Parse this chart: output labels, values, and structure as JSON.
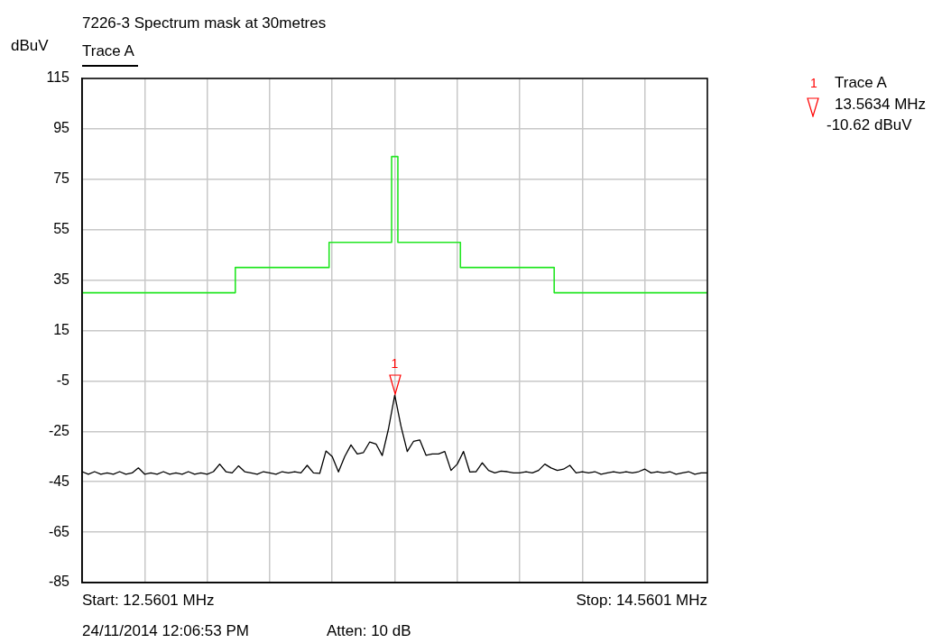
{
  "chart_data": {
    "type": "line",
    "title": "7226-3 Spectrum mask at 30metres",
    "ylabel": "dBuV",
    "categories": [
      null,
      null,
      null,
      null,
      null,
      null,
      null,
      null,
      null,
      null,
      null,
      null,
      null,
      null,
      null,
      null,
      null,
      null,
      null,
      null,
      null,
      null,
      null,
      null,
      null,
      null,
      null,
      null,
      null,
      null,
      null,
      null,
      null,
      null,
      null,
      null,
      null,
      null,
      null,
      null,
      null,
      null,
      null,
      null,
      null,
      null,
      null,
      null,
      null,
      null,
      null,
      null,
      null,
      null,
      null,
      null,
      null,
      null,
      null,
      null,
      null,
      null,
      null,
      null,
      null,
      null,
      null,
      null,
      null,
      null,
      null,
      null,
      null,
      null,
      null,
      null,
      null,
      null,
      null,
      null,
      null,
      null,
      null,
      null,
      null,
      null,
      null,
      null,
      null,
      null,
      null,
      null,
      null,
      null,
      null,
      null,
      null,
      null,
      null,
      null,
      null
    ],
    "ylim": [
      -85,
      115
    ],
    "yticks": [
      115,
      95,
      75,
      55,
      35,
      15,
      -5,
      -25,
      -45,
      -65,
      -85
    ],
    "tick_labels": "y",
    "grid": true,
    "legend": "top left",
    "marker": "none",
    "line_style": "solid",
    "series": [
      {
        "type": "step",
        "color": "#22e622",
        "values": [
          30,
          30,
          30,
          30,
          30,
          30,
          30,
          30,
          30,
          30,
          30,
          30,
          30,
          30,
          30,
          30,
          30,
          30,
          30,
          30,
          30,
          30,
          30,
          30,
          30,
          40,
          40,
          40,
          40,
          40,
          40,
          40,
          40,
          40,
          40,
          40,
          40,
          40,
          40,
          40,
          50,
          50,
          50,
          50,
          50,
          50,
          50,
          50,
          50,
          50,
          84,
          50,
          50,
          50,
          50,
          50,
          50,
          50,
          50,
          50,
          50,
          40,
          40,
          40,
          40,
          40,
          40,
          40,
          40,
          40,
          40,
          40,
          40,
          40,
          40,
          40,
          30,
          30,
          30,
          30,
          30,
          30,
          30,
          30,
          30,
          30,
          30,
          30,
          30,
          30,
          30,
          30,
          30,
          30,
          30,
          30,
          30,
          30,
          30,
          30,
          30
        ]
      },
      {
        "name": "Trace A",
        "color": "#000000",
        "values": [
          -41,
          -42,
          -41,
          -42,
          -41.5,
          -42,
          -41,
          -42,
          -41.5,
          -39.5,
          -42,
          -41.5,
          -42,
          -41,
          -42,
          -41.5,
          -42,
          -41,
          -42,
          -41.5,
          -42,
          -41,
          -38,
          -41,
          -41.5,
          -38.7,
          -41,
          -41.5,
          -42,
          -41,
          -41.5,
          -42,
          -41,
          -41.5,
          -41,
          -41.5,
          -38.5,
          -41.5,
          -41.7,
          -32.8,
          -35,
          -41.1,
          -35,
          -30.4,
          -34,
          -33.4,
          -29.2,
          -30,
          -34.6,
          -24,
          -10.62,
          -23,
          -33,
          -29,
          -28.4,
          -34.5,
          -34,
          -34,
          -33,
          -40.5,
          -38,
          -33,
          -41.1,
          -41,
          -37.5,
          -40.5,
          -41.5,
          -40.8,
          -41,
          -41.5,
          -41.5,
          -41,
          -41.5,
          -40.5,
          -38,
          -39.5,
          -40.5,
          -40,
          -38.5,
          -41.5,
          -41,
          -41.5,
          -41,
          -42,
          -41.5,
          -41,
          -41.5,
          -41,
          -41.5,
          -41,
          -40,
          -41.5,
          -41,
          -41.5,
          -41,
          -42,
          -41.5,
          -41,
          -42,
          -41.5,
          -41.5
        ]
      }
    ],
    "annotations": [
      "Start: 12.5601 MHz",
      "Stop: 14.5601 MHz",
      "24/11/2014 12:06:53 PM",
      "Atten: 10 dB",
      {
        "text": "1",
        "y": -10.62
      },
      "1",
      "Trace A",
      "13.5634 MHz",
      "-10.62 dBuV"
    ]
  }
}
